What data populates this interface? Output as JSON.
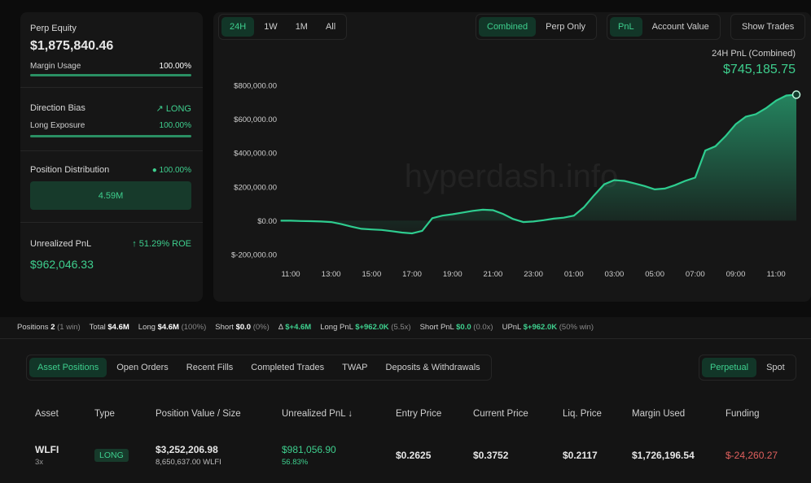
{
  "sidebar": {
    "equity_label": "Perp Equity",
    "equity": "$1,875,840.46",
    "margin_label": "Margin Usage",
    "margin": "100.00%",
    "bias_label": "Direction Bias",
    "bias": "LONG",
    "exposure_label": "Long Exposure",
    "exposure": "100.00%",
    "distribution_label": "Position Distribution",
    "distribution": "100.00%",
    "distribution_bar": "4.59M",
    "upnl_label": "Unrealized PnL",
    "roe": "51.29% ROE",
    "upnl": "$962,046.33"
  },
  "range_buttons": [
    "24H",
    "1W",
    "1M",
    "All"
  ],
  "range_active": 0,
  "mode_buttons": [
    "Combined",
    "Perp Only"
  ],
  "mode_active": 0,
  "metric_buttons": [
    "PnL",
    "Account Value"
  ],
  "metric_active": 0,
  "show_trades": "Show Trades",
  "chart_data": {
    "type": "line",
    "title": "24H PnL (Combined)",
    "headline": "$745,185.75",
    "watermark": "hyperdash.info",
    "color": "#2ecc8f",
    "categories": [
      null,
      "11:00",
      null,
      null,
      null,
      "13:00",
      null,
      null,
      null,
      "15:00",
      null,
      null,
      null,
      "17:00",
      null,
      null,
      null,
      "19:00",
      null,
      null,
      null,
      "21:00",
      null,
      null,
      null,
      "23:00",
      null,
      null,
      null,
      "01:00",
      null,
      null,
      null,
      "03:00",
      null,
      null,
      null,
      "05:00",
      null,
      null,
      null,
      "07:00",
      null,
      null,
      null,
      "09:00",
      null,
      null,
      null,
      "11:00",
      null,
      null
    ],
    "values": [
      0,
      0,
      -2000,
      -3000,
      -5000,
      -8000,
      -20000,
      -35000,
      -48000,
      -52000,
      -55000,
      -62000,
      -70000,
      -75000,
      -60000,
      15000,
      30000,
      38000,
      48000,
      58000,
      65000,
      62000,
      40000,
      10000,
      -8000,
      -5000,
      3000,
      12000,
      18000,
      30000,
      80000,
      150000,
      215000,
      240000,
      235000,
      220000,
      205000,
      185000,
      190000,
      210000,
      235000,
      255000,
      415000,
      440000,
      500000,
      570000,
      615000,
      630000,
      665000,
      710000,
      740000,
      745185.75
    ],
    "ylim": [
      -200000,
      800000
    ],
    "yticks": [
      {
        "value": 800000,
        "label": "$800,000.00"
      },
      {
        "value": 600000,
        "label": "$600,000.00"
      },
      {
        "value": 400000,
        "label": "$400,000.00"
      },
      {
        "value": 200000,
        "label": "$200,000.00"
      },
      {
        "value": 0,
        "label": "$0.00"
      },
      {
        "value": -200000,
        "label": "$-200,000.00"
      }
    ]
  },
  "stats": [
    {
      "label": "Positions",
      "value": "2",
      "note": "(1 win)"
    },
    {
      "label": "Total",
      "value": "$4.6M"
    },
    {
      "label": "Long",
      "value": "$4.6M",
      "note": "(100%)"
    },
    {
      "label": "Short",
      "value": "$0.0",
      "note": "(0%)"
    },
    {
      "label": "Δ",
      "value": "$+4.6M",
      "color": "#3ecf8e"
    },
    {
      "label": "Long PnL",
      "value": "$+962.0K",
      "note": "(5.5x)",
      "color": "#3ecf8e"
    },
    {
      "label": "Short PnL",
      "value": "$0.0",
      "note": "(0.0x)",
      "color": "#3ecf8e"
    },
    {
      "label": "UPnL",
      "value": "$+962.0K",
      "note": "(50% win)",
      "color": "#3ecf8e"
    }
  ],
  "tabs": [
    "Asset Positions",
    "Open Orders",
    "Recent Fills",
    "Completed Trades",
    "TWAP",
    "Deposits & Withdrawals"
  ],
  "tab_active": 0,
  "market_tabs": [
    "Perpetual",
    "Spot"
  ],
  "market_active": 0,
  "table": {
    "headers": [
      "Asset",
      "Type",
      "Position Value / Size",
      "Unrealized PnL ↓",
      "Entry Price",
      "Current Price",
      "Liq. Price",
      "Margin Used",
      "Funding"
    ],
    "rows": [
      {
        "asset": "WLFI",
        "leverage": "3x",
        "type": "LONG",
        "value": "$3,252,206.98",
        "size": "8,650,637.00 WLFI",
        "pnl": "$981,056.90",
        "pnl_pct": "56.83%",
        "entry": "$0.2625",
        "current": "$0.3752",
        "liq": "$0.2117",
        "margin": "$1,726,196.54",
        "funding": "$-24,260.27"
      }
    ]
  }
}
